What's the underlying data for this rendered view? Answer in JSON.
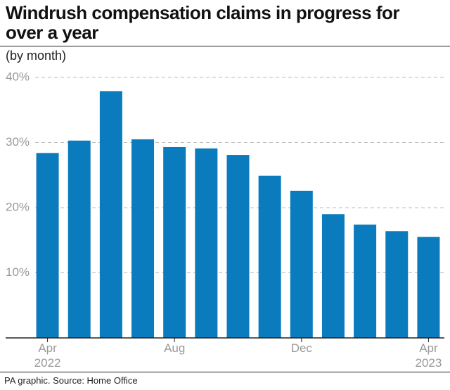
{
  "chart_data": {
    "type": "bar",
    "title": "Windrush compensation claims in progress for over a year",
    "subtitle": "(by month)",
    "source": "PA graphic. Source: Home Office",
    "categories": [
      "Apr 2022",
      null,
      null,
      null,
      "Aug",
      null,
      null,
      null,
      "Dec",
      null,
      null,
      null,
      "Apr 2023"
    ],
    "values": [
      28.4,
      30.3,
      37.9,
      30.5,
      29.3,
      29.1,
      28.1,
      24.9,
      22.6,
      19.0,
      17.4,
      16.4,
      15.5
    ],
    "color": "#0a7bbd",
    "ylim": [
      0,
      40
    ],
    "yticks": [
      {
        "value": 10,
        "label": "10%"
      },
      {
        "value": 20,
        "label": "20%"
      },
      {
        "value": 30,
        "label": "30%"
      },
      {
        "value": 40,
        "label": "40%"
      }
    ],
    "grid": true
  }
}
